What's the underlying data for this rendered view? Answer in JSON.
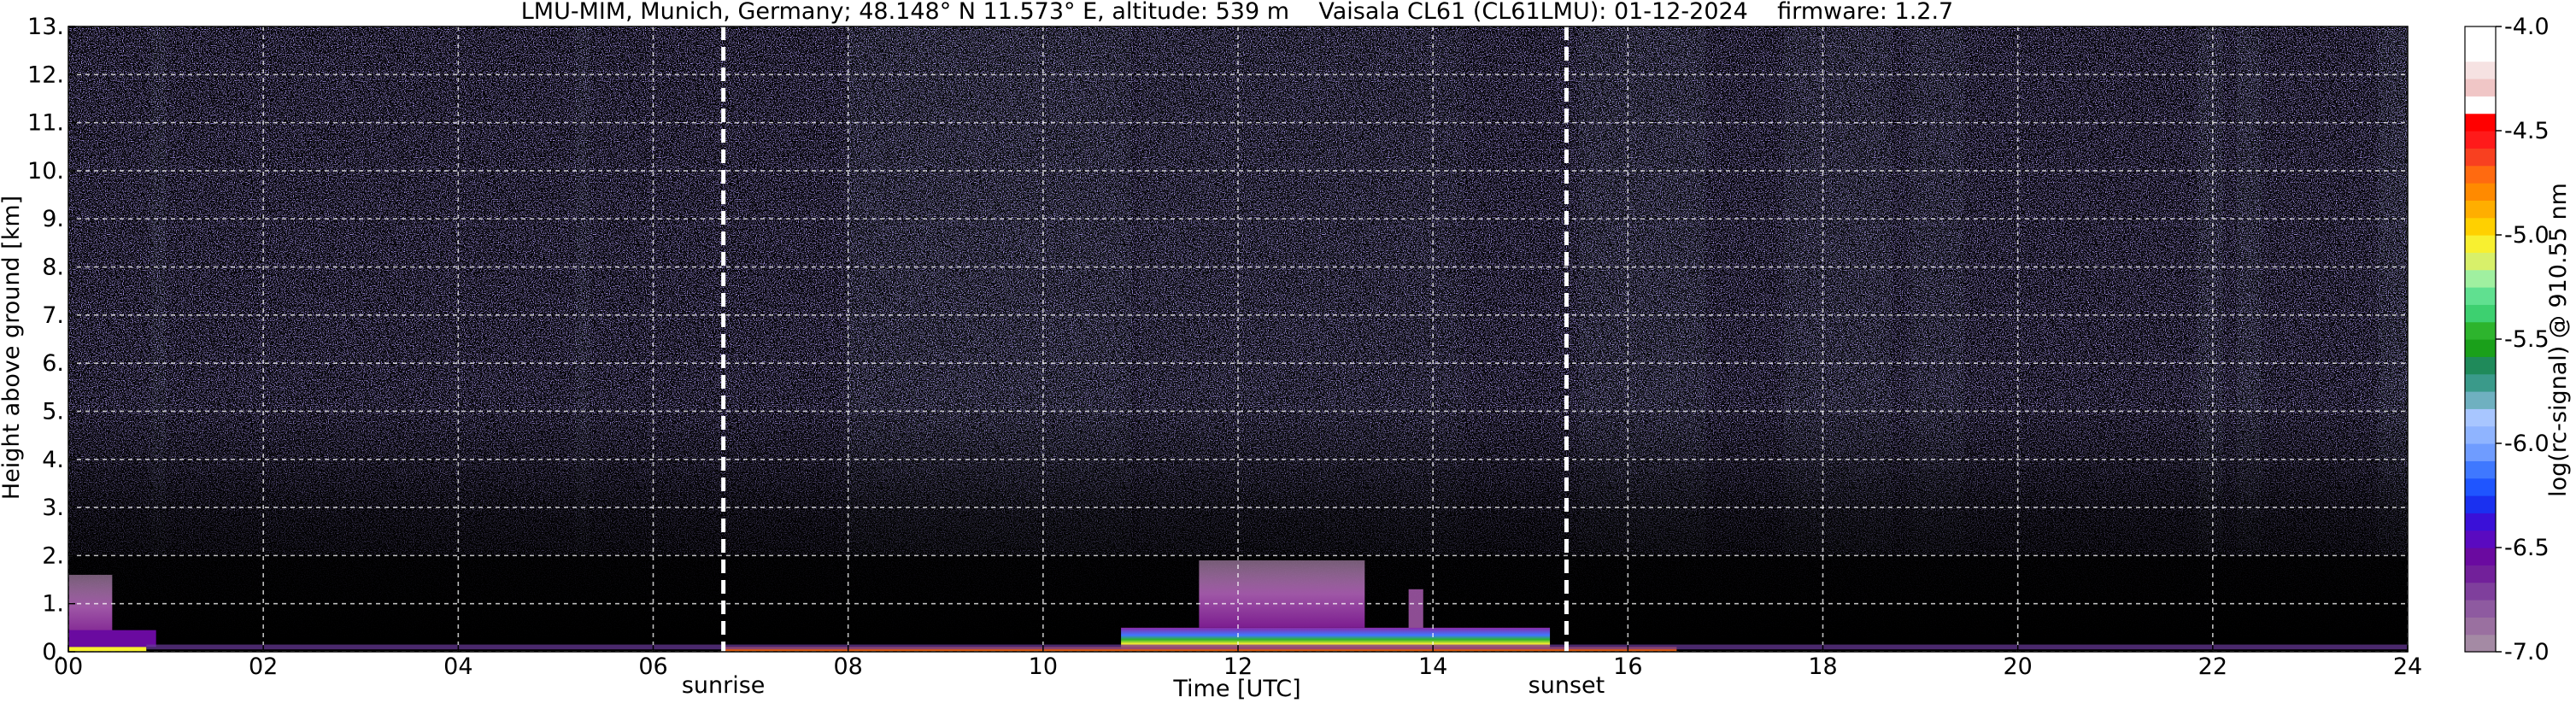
{
  "chart_data": {
    "type": "heatmap",
    "title": "LMU-MIM, Munich, Germany; 48.148° N 11.573° E, altitude: 539 m    Vaisala CL61 (CL61LMU): 01-12-2024    firmware: 1.2.7",
    "xlabel": "Time [UTC]",
    "ylabel": "Height above ground [km]",
    "xlim": [
      0,
      24
    ],
    "ylim": [
      0,
      13
    ],
    "x_ticks": [
      "00",
      "02",
      "04",
      "06",
      "08",
      "10",
      "12",
      "14",
      "16",
      "18",
      "20",
      "22",
      "24"
    ],
    "x_tick_values": [
      0,
      2,
      4,
      6,
      8,
      10,
      12,
      14,
      16,
      18,
      20,
      22,
      24
    ],
    "y_ticks": [
      "0.",
      "1.",
      "2.",
      "3.",
      "4.",
      "5.",
      "6.",
      "7.",
      "8.",
      "9.",
      "10.",
      "11.",
      "12.",
      "13."
    ],
    "y_tick_values": [
      0,
      1,
      2,
      3,
      4,
      5,
      6,
      7,
      8,
      9,
      10,
      11,
      12,
      13
    ],
    "grid": true,
    "colorbar": {
      "label": "log(rc-signal) @ 910.55 nm",
      "range": [
        -7.0,
        -4.0
      ],
      "ticks": [
        "-4.0",
        "-4.5",
        "-5.0",
        "-5.5",
        "-6.0",
        "-6.5",
        "-7.0"
      ],
      "tick_values": [
        -4.0,
        -4.5,
        -5.0,
        -5.5,
        -6.0,
        -6.5,
        -7.0
      ],
      "colors_bottom_to_top": [
        "#a48aa4",
        "#9a70a0",
        "#8e5aa0",
        "#7f3f9c",
        "#72209a",
        "#6a0aa0",
        "#5a0ac0",
        "#3a10d8",
        "#1a30f0",
        "#1f55ff",
        "#3f78ff",
        "#6f9cff",
        "#8fb4ff",
        "#a8c6ff",
        "#6fb0c0",
        "#3a9a8a",
        "#1f8a5a",
        "#1aa01a",
        "#2db42d",
        "#3dd070",
        "#60e090",
        "#a0f0a0",
        "#d8f06a",
        "#f8f030",
        "#ffd000",
        "#ffae00",
        "#ff8a00",
        "#ff6a10",
        "#f84020",
        "#ff1a1a",
        "#ff0000",
        "#ffffff",
        "#f0c6c6",
        "#f6e2e2",
        "#ffffff",
        "#ffffff"
      ]
    },
    "markers": [
      {
        "label": "sunrise",
        "x": 6.72
      },
      {
        "label": "sunset",
        "x": 15.37
      }
    ],
    "background_color": "#000000"
  }
}
